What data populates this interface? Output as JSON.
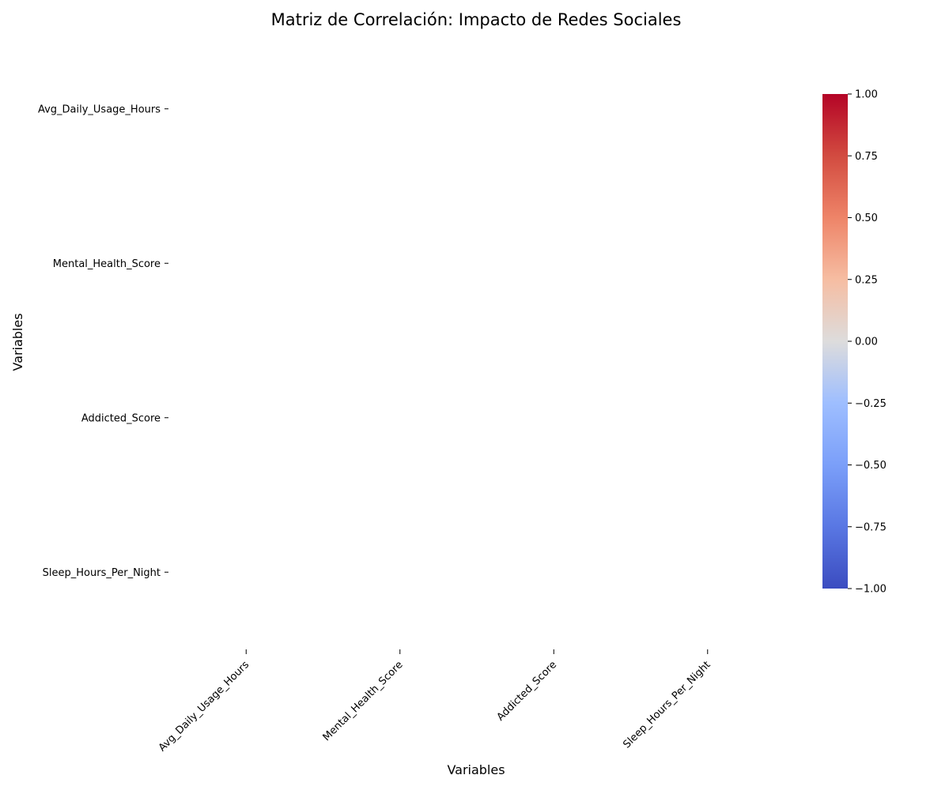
{
  "chart_data": {
    "type": "heatmap",
    "title": "Matriz de Correlación: Impacto de Redes Sociales",
    "xlabel": "Variables",
    "ylabel": "Variables",
    "x_categories": [
      "Avg_Daily_Usage_Hours",
      "Mental_Health_Score",
      "Addicted_Score",
      "Sleep_Hours_Per_Night"
    ],
    "y_categories": [
      "Avg_Daily_Usage_Hours",
      "Mental_Health_Score",
      "Addicted_Score",
      "Sleep_Hours_Per_Night"
    ],
    "values": [],
    "colormap": "coolwarm",
    "colorbar": {
      "range": [
        -1.0,
        1.0
      ],
      "ticks": [
        "1.00",
        "0.75",
        "0.50",
        "0.25",
        "0.00",
        "−0.25",
        "−0.50",
        "−0.75",
        "−1.00"
      ],
      "tick_values": [
        1.0,
        0.75,
        0.5,
        0.25,
        0.0,
        -0.25,
        -0.5,
        -0.75,
        -1.0
      ]
    }
  }
}
